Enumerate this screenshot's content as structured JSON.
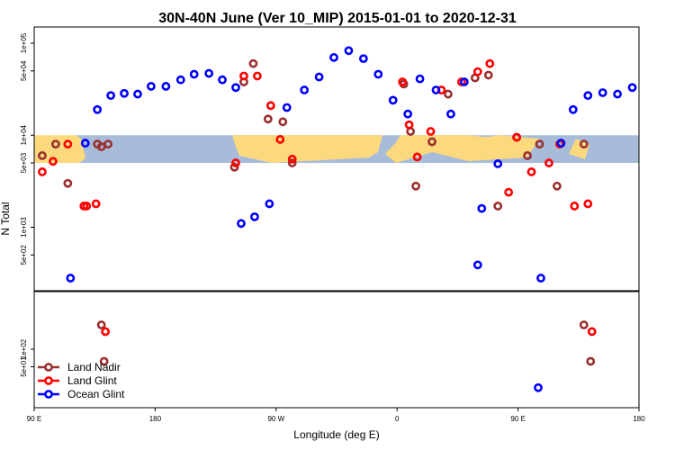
{
  "chart_data": {
    "type": "scatter",
    "title": "30N-40N June (Ver 10_MIP)   2015-01-01 to 2020-12-31",
    "xlabel": "Longitude (deg E)",
    "ylabel": "N Total",
    "x_ticks": [
      {
        "x": 90,
        "label": "90 E"
      },
      {
        "x": 180,
        "label": "180"
      },
      {
        "x": 270,
        "label": "90 W"
      },
      {
        "x": 360,
        "label": "0"
      },
      {
        "x": 450,
        "label": "90 E"
      },
      {
        "x": 540,
        "label": "180"
      }
    ],
    "xlim": [
      90,
      540
    ],
    "log_y": true,
    "upper_panel": {
      "ylim": [
        200,
        150000
      ],
      "y_ticks": [
        {
          "y": 500,
          "label": "5e+02"
        },
        {
          "y": 1000,
          "label": "1e+03"
        },
        {
          "y": 5000,
          "label": "5e+03"
        },
        {
          "y": 10000,
          "label": "1e+04"
        },
        {
          "y": 50000,
          "label": "5e+04"
        },
        {
          "y": 100000,
          "label": "1e+05"
        }
      ],
      "land_band": {
        "ymin": 5000,
        "ymax": 10000,
        "ocean_color": "#a7bcd9",
        "land_color": "#fcd97d"
      }
    },
    "lower_panel": {
      "ylim": [
        10,
        1000
      ],
      "y_ticks": [
        {
          "y": 50,
          "label": "5e+01"
        },
        {
          "y": 100,
          "label": "1e+02"
        }
      ]
    },
    "series": [
      {
        "name": "Land Nadir",
        "color": "#9b2f2f",
        "points": [
          [
            96,
            6000
          ],
          [
            106,
            8000
          ],
          [
            115,
            3000
          ],
          [
            137,
            8000
          ],
          [
            140,
            7500
          ],
          [
            145,
            8000
          ],
          [
            239,
            4500
          ],
          [
            246,
            38000
          ],
          [
            253,
            60000
          ],
          [
            264,
            15000
          ],
          [
            275,
            14000
          ],
          [
            282,
            5000
          ],
          [
            365,
            36000
          ],
          [
            370,
            11000
          ],
          [
            374,
            2800
          ],
          [
            386,
            8500
          ],
          [
            398,
            28000
          ],
          [
            418,
            42000
          ],
          [
            428,
            45000
          ],
          [
            435,
            1700
          ],
          [
            449,
            9500
          ],
          [
            457,
            6000
          ],
          [
            466,
            8000
          ],
          [
            479,
            2800
          ],
          [
            499,
            8000
          ]
        ],
        "lower_points": [
          [
            140,
            260
          ],
          [
            142,
            62
          ],
          [
            499,
            260
          ],
          [
            504,
            62
          ]
        ]
      },
      {
        "name": "Land Glint",
        "color": "#ff0000",
        "points": [
          [
            96,
            4000
          ],
          [
            104,
            5200
          ],
          [
            115,
            8000
          ],
          [
            127,
            1700
          ],
          [
            129,
            1700
          ],
          [
            136,
            1800
          ],
          [
            240,
            5000
          ],
          [
            246,
            44000
          ],
          [
            256,
            44000
          ],
          [
            266,
            21000
          ],
          [
            273,
            9000
          ],
          [
            282,
            5500
          ],
          [
            364,
            38000
          ],
          [
            369,
            13000
          ],
          [
            375,
            5800
          ],
          [
            385,
            11000
          ],
          [
            393,
            31000
          ],
          [
            408,
            38000
          ],
          [
            420,
            49000
          ],
          [
            429,
            60000
          ],
          [
            443,
            2400
          ],
          [
            449,
            9500
          ],
          [
            460,
            4000
          ],
          [
            473,
            5000
          ],
          [
            481,
            8000
          ],
          [
            492,
            1700
          ],
          [
            502,
            1800
          ]
        ],
        "lower_points": [
          [
            143,
            200
          ],
          [
            505,
            200
          ]
        ]
      },
      {
        "name": "Ocean Glint",
        "color": "#0000ff",
        "points": [
          [
            117,
            280
          ],
          [
            128,
            8200
          ],
          [
            137,
            19000
          ],
          [
            147,
            27000
          ],
          [
            157,
            28500
          ],
          [
            167,
            28000
          ],
          [
            177,
            34000
          ],
          [
            188,
            34000
          ],
          [
            199,
            40000
          ],
          [
            209,
            46000
          ],
          [
            220,
            47000
          ],
          [
            230,
            40000
          ],
          [
            240,
            33000
          ],
          [
            244,
            1100
          ],
          [
            254,
            1300
          ],
          [
            265,
            1800
          ],
          [
            278,
            20000
          ],
          [
            291,
            31000
          ],
          [
            302,
            43000
          ],
          [
            313,
            70000
          ],
          [
            324,
            83000
          ],
          [
            335,
            68000
          ],
          [
            346,
            46000
          ],
          [
            357,
            24000
          ],
          [
            368,
            17000
          ],
          [
            377,
            41000
          ],
          [
            389,
            31000
          ],
          [
            400,
            17000
          ],
          [
            410,
            38000
          ],
          [
            420,
            390
          ],
          [
            423,
            1600
          ],
          [
            435,
            4900
          ],
          [
            467,
            280
          ],
          [
            482,
            8200
          ],
          [
            491,
            19000
          ],
          [
            502,
            27000
          ],
          [
            513,
            29000
          ],
          [
            524,
            28000
          ],
          [
            535,
            33000
          ]
        ],
        "lower_points": [
          [
            465,
            22
          ]
        ]
      }
    ],
    "legend": {
      "position": "bottom-left"
    }
  }
}
